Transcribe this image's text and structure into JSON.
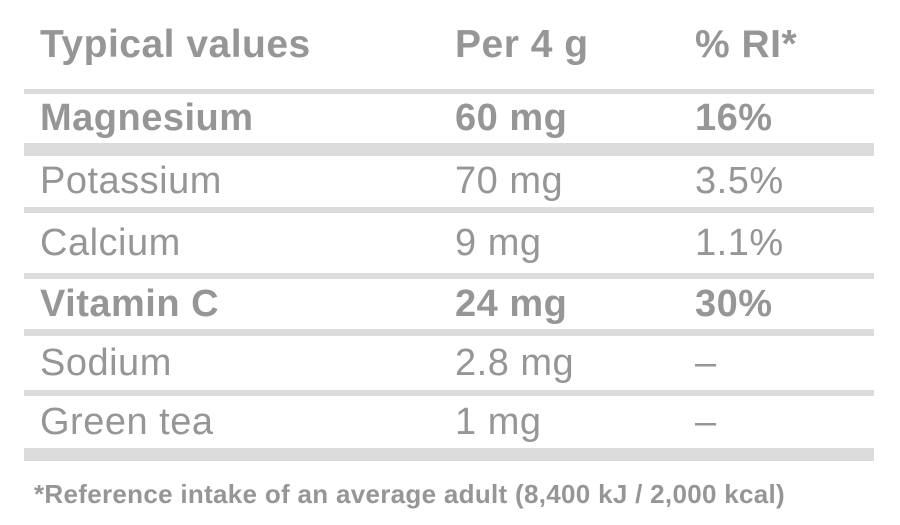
{
  "header": {
    "typical_values": "Typical values",
    "per_serving": "Per 4 g",
    "percent_ri": "% RI*"
  },
  "rows": [
    {
      "name": "Magnesium",
      "amount": "60 mg",
      "percent_ri": "16%"
    },
    {
      "name": "Potassium",
      "amount": "70 mg",
      "percent_ri": "3.5%"
    },
    {
      "name": "Calcium",
      "amount": "9 mg",
      "percent_ri": "1.1%"
    },
    {
      "name": "Vitamin C",
      "amount": "24 mg",
      "percent_ri": "30%"
    },
    {
      "name": "Sodium",
      "amount": "2.8 mg",
      "percent_ri": "–"
    },
    {
      "name": "Green tea",
      "amount": "1 mg",
      "percent_ri": "–"
    }
  ],
  "footnote": "*Reference intake of an average adult (8,400 kJ / 2,000 kcal)",
  "colors": {
    "text": "#969696",
    "divider": "#dcdcdc",
    "background": "#ffffff"
  }
}
